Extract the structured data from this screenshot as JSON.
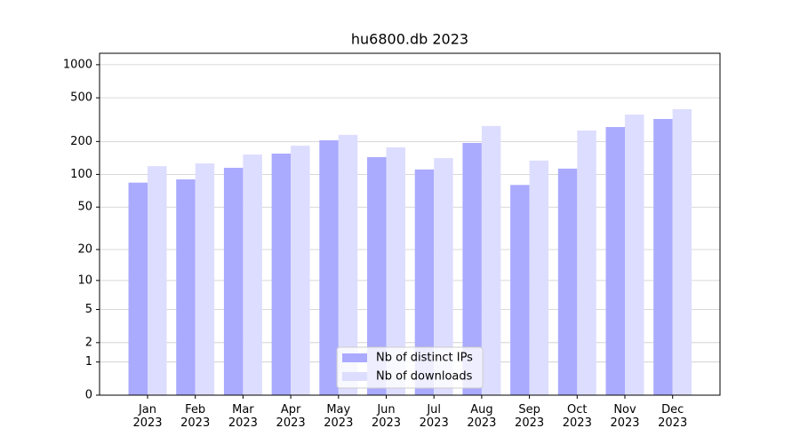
{
  "chart_data": {
    "type": "bar",
    "title": "hu6800.db 2023",
    "categories": [
      "Jan\n2023",
      "Feb\n2023",
      "Mar\n2023",
      "Apr\n2023",
      "May\n2023",
      "Jun\n2023",
      "Jul\n2023",
      "Aug\n2023",
      "Sep\n2023",
      "Oct\n2023",
      "Nov\n2023",
      "Dec\n2023"
    ],
    "series": [
      {
        "name": "Nb of distinct IPs",
        "color": "#aaaaff",
        "values": [
          84,
          90,
          115,
          155,
          205,
          144,
          111,
          194,
          80,
          113,
          271,
          321
        ]
      },
      {
        "name": "Nb of downloads",
        "color": "#ddddff",
        "values": [
          119,
          126,
          152,
          183,
          230,
          177,
          141,
          277,
          134,
          252,
          352,
          394
        ]
      }
    ],
    "yscale": "log1p",
    "ylim": [
      0,
      1270
    ],
    "yticks": [
      0,
      1,
      2,
      5,
      10,
      20,
      50,
      100,
      200,
      500,
      1000
    ],
    "grid": true,
    "legend": "lower center"
  }
}
